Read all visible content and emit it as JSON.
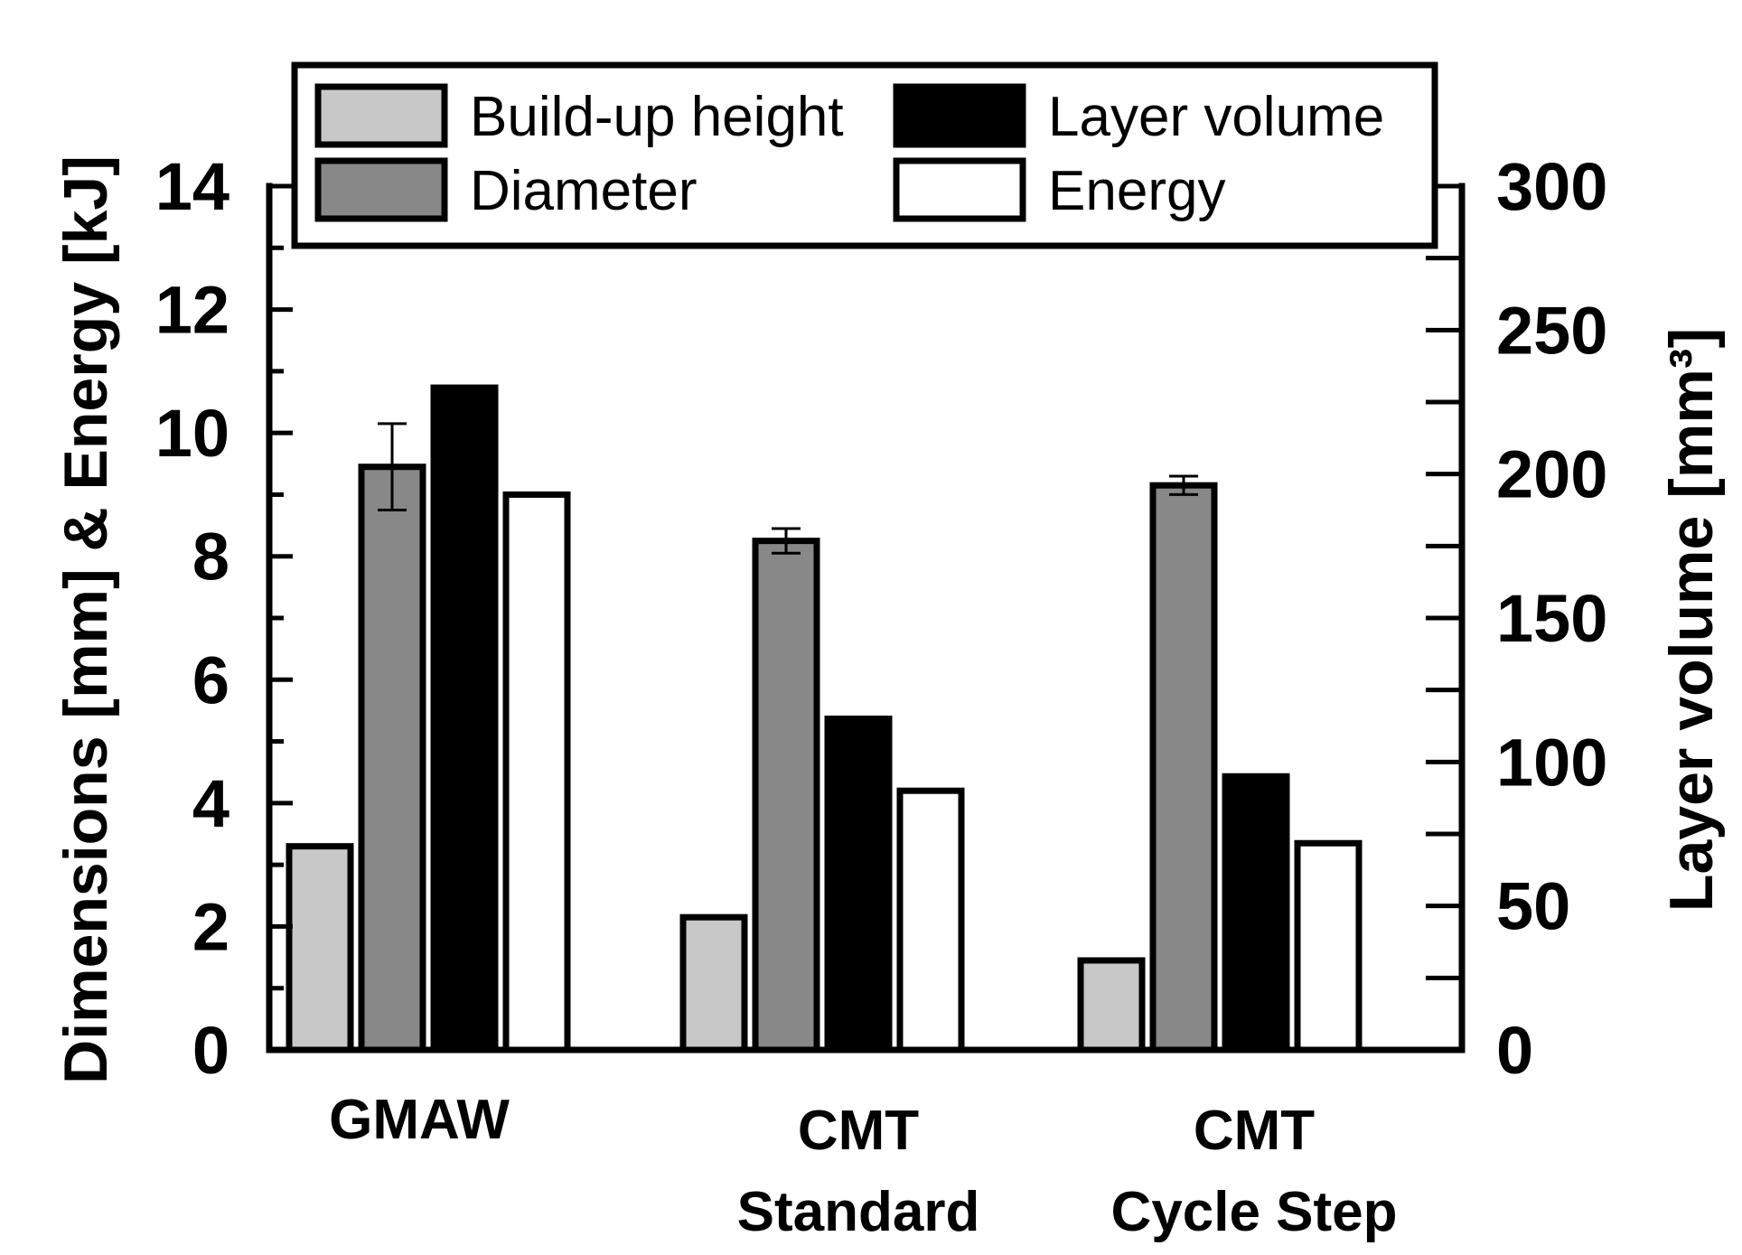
{
  "chart_data": {
    "type": "bar",
    "categories": [
      [
        "GMAW"
      ],
      [
        "CMT",
        "Standard"
      ],
      [
        "CMT",
        "Cycle Step"
      ]
    ],
    "series": [
      {
        "name": "Build-up height",
        "axis": "left",
        "color": "#c8c8c8",
        "values": [
          3.3,
          2.15,
          1.45
        ],
        "errors": [
          null,
          null,
          null
        ]
      },
      {
        "name": "Diameter",
        "axis": "left",
        "color": "#888888",
        "values": [
          9.45,
          8.25,
          9.15
        ],
        "errors": [
          0.7,
          0.2,
          0.15
        ]
      },
      {
        "name": "Layer volume",
        "axis": "right",
        "color": "#000000",
        "values": [
          230,
          115,
          95
        ],
        "errors": [
          null,
          null,
          null
        ]
      },
      {
        "name": "Energy",
        "axis": "left",
        "color": "#ffffff",
        "values": [
          9.0,
          4.2,
          3.35
        ],
        "errors": [
          null,
          null,
          null
        ]
      }
    ],
    "y_left": {
      "label": "Dimensions [mm] & Energy [kJ]",
      "ylim": [
        0,
        14
      ],
      "ticks": [
        "0",
        "2",
        "4",
        "6",
        "8",
        "10",
        "12",
        "14"
      ]
    },
    "y_right": {
      "label": "Layer volume [mm³]",
      "ylim": [
        0,
        300
      ],
      "ticks": [
        "0",
        "50",
        "100",
        "150",
        "200",
        "250",
        "300"
      ]
    },
    "xlabel": "",
    "title": "",
    "legend": {
      "placement": "top",
      "columns": 2
    },
    "grid": false
  }
}
